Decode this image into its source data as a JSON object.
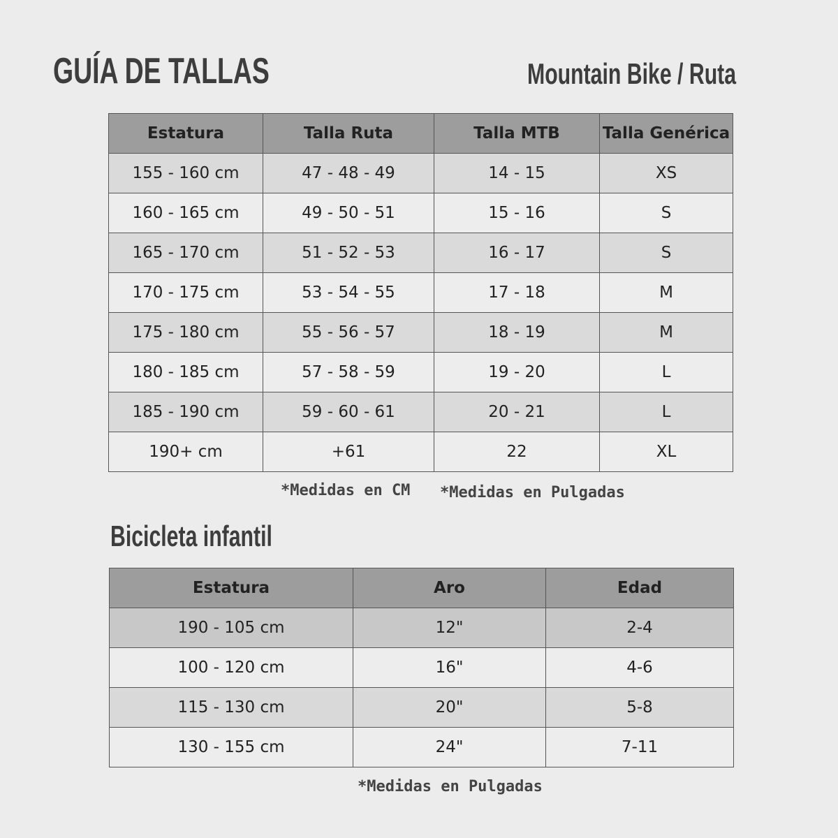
{
  "header": {
    "title": "GUÍA DE TALLAS",
    "subtitle": "Mountain Bike / Ruta"
  },
  "size_table": {
    "columns": [
      "Estatura",
      "Talla Ruta",
      "Talla MTB",
      "Talla Genérica"
    ],
    "rows": [
      [
        "155 - 160 cm",
        "47 - 48 - 49",
        "14 - 15",
        "XS"
      ],
      [
        "160 - 165 cm",
        "49 - 50 - 51",
        "15 - 16",
        "S"
      ],
      [
        "165 - 170 cm",
        "51 - 52 - 53",
        "16 - 17",
        "S"
      ],
      [
        "170 - 175 cm",
        "53 - 54 - 55",
        "17 - 18",
        "M"
      ],
      [
        "175 - 180 cm",
        "55 - 56 - 57",
        "18 - 19",
        "M"
      ],
      [
        "180 - 185 cm",
        "57 - 58 - 59",
        "19 - 20",
        "L"
      ],
      [
        "185 - 190 cm",
        "59 - 60 - 61",
        "20 - 21",
        "L"
      ],
      [
        "190+ cm",
        "+61",
        "22",
        "XL"
      ]
    ],
    "notes": [
      "*Medidas en CM",
      "*Medidas en Pulgadas"
    ]
  },
  "kids": {
    "title": "Bicicleta infantil",
    "columns": [
      "Estatura",
      "Aro",
      "Edad"
    ],
    "rows": [
      [
        "190 - 105 cm",
        "12\"",
        "2-4"
      ],
      [
        "100 - 120 cm",
        "16\"",
        "4-6"
      ],
      [
        "115 - 130 cm",
        "20\"",
        "5-8"
      ],
      [
        "130 - 155 cm",
        "24\"",
        "7-11"
      ]
    ],
    "note": "*Medidas en Pulgadas"
  },
  "colors": {
    "background": "#ececec",
    "header": "#9d9d9d",
    "row_dark": "#dadada",
    "row_light": "#ededed",
    "border": "#555555"
  }
}
